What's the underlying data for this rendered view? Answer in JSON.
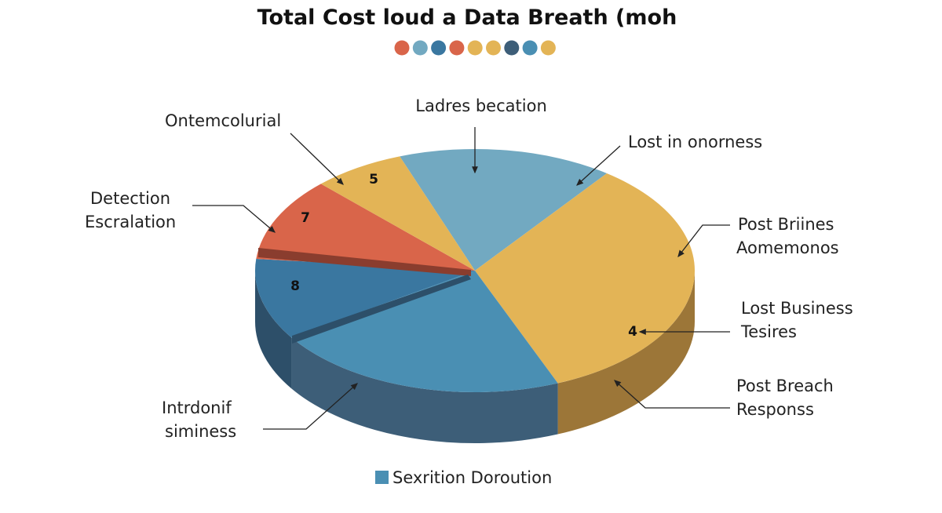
{
  "chart_data": {
    "type": "pie",
    "style": "3d",
    "title": "Total Cost loud a Data Breath (moh",
    "title_dots": [
      "#d9654a",
      "#72a9c1",
      "#3a77a0",
      "#d9654a",
      "#e3b456",
      "#e3b456",
      "#3d5e78",
      "#4a8fb3",
      "#e3b456"
    ],
    "slices": [
      {
        "label": [
          "Ladres becation"
        ],
        "value_pct": 15.8,
        "data_label": "",
        "color": "#72a9c1",
        "side": "#5a8ba0"
      },
      {
        "label": [
          "Post Briines",
          "Aomemonos"
        ],
        "value_pct": 33.6,
        "data_label": "4",
        "color": "#e3b456",
        "side": "#9c7638"
      },
      {
        "label": [
          "Intrdonif",
          "siminess"
        ],
        "value_pct": 21.9,
        "data_label": "",
        "color": "#4a8fb3",
        "side": "#3d5e78"
      },
      {
        "label": [],
        "value_pct": 10.8,
        "data_label": "8",
        "color": "#3a77a0",
        "side": "#2d4f69"
      },
      {
        "label": [
          "Detection",
          "Escralation"
        ],
        "value_pct": 11.1,
        "data_label": "7",
        "color": "#d9654a",
        "side": "#8a3d2e"
      },
      {
        "label": [
          "Ontemcolurial"
        ],
        "value_pct": 6.8,
        "data_label": "5",
        "color": "#e3b456",
        "side": "#9c7638"
      }
    ],
    "extra_labels": [
      [
        "Lost in onorness"
      ],
      [
        "Lost Business",
        "Tesires"
      ],
      [
        "Post Breach",
        "Responss"
      ]
    ],
    "legend": {
      "label": "Sexrition Doroution",
      "color": "#4a8fb3",
      "position": "bottom"
    }
  }
}
